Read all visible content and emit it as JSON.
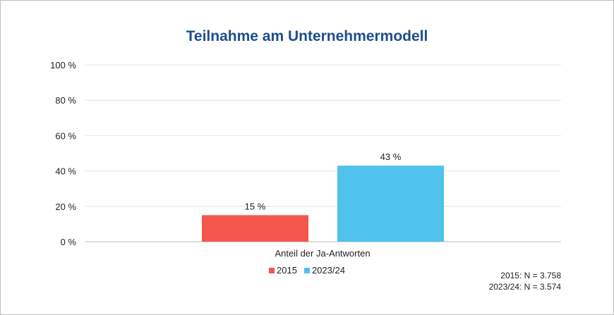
{
  "chart_data": {
    "type": "bar",
    "title": "Teilnahme am Unternehmermodell",
    "categories": [
      "Anteil der Ja-Antworten"
    ],
    "series": [
      {
        "name": "2015",
        "values": [
          15
        ],
        "color": "#f4564b",
        "label": "15 %"
      },
      {
        "name": "2023/24",
        "values": [
          43
        ],
        "color": "#4fc2ed",
        "label": "43 %"
      }
    ],
    "ylim": [
      0,
      100
    ],
    "yticks": [
      0,
      20,
      40,
      60,
      80,
      100
    ],
    "ytick_labels": [
      "0 %",
      "20 %",
      "40 %",
      "60 %",
      "80 %",
      "100 %"
    ],
    "grid": true,
    "legend_position": "bottom",
    "notes": [
      "2015: N = 3.758",
      "2023/24: N = 3.574"
    ]
  }
}
